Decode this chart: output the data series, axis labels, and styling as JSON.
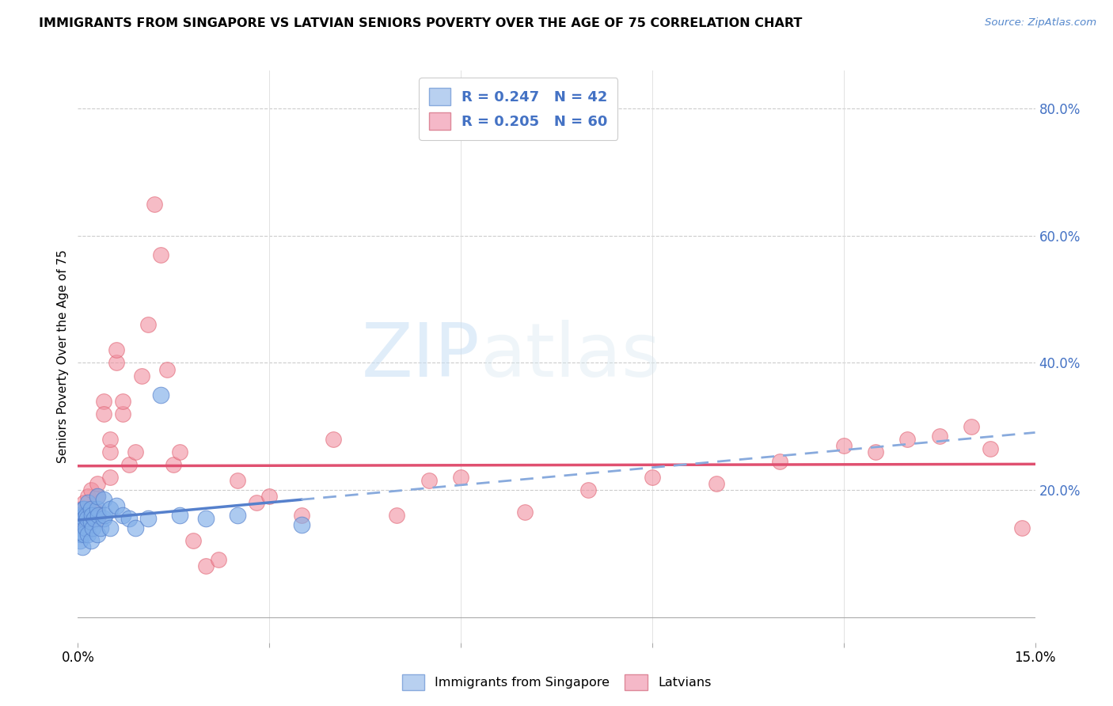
{
  "title": "IMMIGRANTS FROM SINGAPORE VS LATVIAN SENIORS POVERTY OVER THE AGE OF 75 CORRELATION CHART",
  "source": "Source: ZipAtlas.com",
  "ylabel": "Seniors Poverty Over the Age of 75",
  "xmin": 0.0,
  "xmax": 0.15,
  "ymin": -0.04,
  "ymax": 0.86,
  "legend1_label": "R = 0.247   N = 42",
  "legend2_label": "R = 0.205   N = 60",
  "legend1_color": "#b8d0f0",
  "legend2_color": "#f5b8c8",
  "scatter_color_sg": "#80aee8",
  "scatter_color_lv": "#f090a0",
  "trendline_color_sg": "#5580cc",
  "trendline_color_lv": "#e05070",
  "watermark_zip": "ZIP",
  "watermark_atlas": "atlas",
  "sg_x": [
    0.0002,
    0.0003,
    0.0004,
    0.0005,
    0.0006,
    0.0007,
    0.0008,
    0.0009,
    0.001,
    0.001,
    0.001,
    0.0012,
    0.0013,
    0.0014,
    0.0015,
    0.0015,
    0.002,
    0.002,
    0.002,
    0.0022,
    0.0023,
    0.0025,
    0.003,
    0.003,
    0.003,
    0.0032,
    0.0035,
    0.004,
    0.004,
    0.0042,
    0.005,
    0.005,
    0.006,
    0.007,
    0.008,
    0.009,
    0.011,
    0.013,
    0.016,
    0.02,
    0.025,
    0.035
  ],
  "sg_y": [
    0.14,
    0.12,
    0.16,
    0.13,
    0.15,
    0.11,
    0.17,
    0.13,
    0.16,
    0.17,
    0.155,
    0.14,
    0.16,
    0.155,
    0.13,
    0.18,
    0.15,
    0.17,
    0.12,
    0.16,
    0.14,
    0.155,
    0.13,
    0.17,
    0.19,
    0.16,
    0.14,
    0.155,
    0.185,
    0.16,
    0.14,
    0.17,
    0.175,
    0.16,
    0.155,
    0.14,
    0.155,
    0.35,
    0.16,
    0.155,
    0.16,
    0.145
  ],
  "lv_x": [
    0.0002,
    0.0004,
    0.0006,
    0.0008,
    0.001,
    0.001,
    0.0012,
    0.0013,
    0.0015,
    0.0016,
    0.002,
    0.002,
    0.002,
    0.0022,
    0.0025,
    0.003,
    0.003,
    0.003,
    0.003,
    0.004,
    0.004,
    0.005,
    0.005,
    0.005,
    0.006,
    0.006,
    0.007,
    0.007,
    0.008,
    0.009,
    0.01,
    0.011,
    0.012,
    0.013,
    0.014,
    0.015,
    0.016,
    0.018,
    0.02,
    0.022,
    0.025,
    0.028,
    0.03,
    0.035,
    0.04,
    0.05,
    0.055,
    0.06,
    0.07,
    0.08,
    0.09,
    0.1,
    0.11,
    0.12,
    0.125,
    0.13,
    0.135,
    0.14,
    0.143,
    0.148
  ],
  "lv_y": [
    0.155,
    0.17,
    0.14,
    0.16,
    0.155,
    0.18,
    0.155,
    0.17,
    0.16,
    0.19,
    0.155,
    0.17,
    0.2,
    0.16,
    0.165,
    0.155,
    0.165,
    0.19,
    0.21,
    0.34,
    0.32,
    0.26,
    0.28,
    0.22,
    0.4,
    0.42,
    0.32,
    0.34,
    0.24,
    0.26,
    0.38,
    0.46,
    0.65,
    0.57,
    0.39,
    0.24,
    0.26,
    0.12,
    0.08,
    0.09,
    0.215,
    0.18,
    0.19,
    0.16,
    0.28,
    0.16,
    0.215,
    0.22,
    0.165,
    0.2,
    0.22,
    0.21,
    0.245,
    0.27,
    0.26,
    0.28,
    0.285,
    0.3,
    0.265,
    0.14
  ]
}
